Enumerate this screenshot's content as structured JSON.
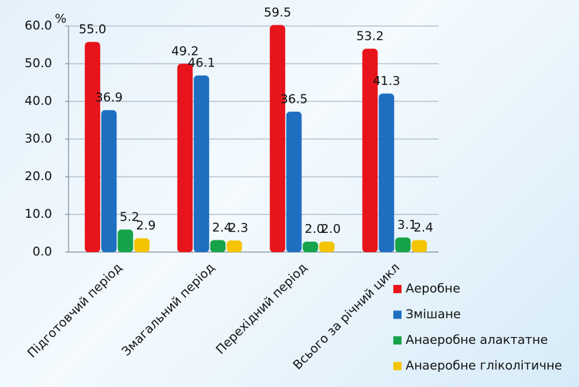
{
  "chart_data": {
    "type": "bar",
    "y_label": "%",
    "categories": [
      "Підготовчий період",
      "Змагальний період",
      "Перехідний період",
      "Всього за річний цикл"
    ],
    "series": [
      {
        "name": "Аеробне",
        "color": "#e8141b",
        "values": [
          55.0,
          49.2,
          59.5,
          53.2
        ],
        "value_labels": [
          "55.0",
          "49.2",
          "59.5",
          "53.2"
        ]
      },
      {
        "name": "Змішане",
        "color": "#1f6fc1",
        "values": [
          36.9,
          46.1,
          36.5,
          41.3
        ],
        "value_labels": [
          "36.9",
          "46.1",
          "36.5",
          "41.3"
        ]
      },
      {
        "name": "Анаеробне алактатне",
        "color": "#16a34a",
        "values": [
          5.2,
          2.4,
          2.0,
          3.1
        ],
        "value_labels": [
          "5.2",
          "2.4",
          "2.0",
          "3.1"
        ]
      },
      {
        "name": "Анаеробне гліколітичне",
        "color": "#f5c400",
        "values": [
          2.9,
          2.3,
          2.0,
          2.4
        ],
        "value_labels": [
          "2.9",
          "2.3",
          "2.0",
          "2.4"
        ]
      }
    ],
    "ylim": [
      0,
      60
    ],
    "yticks": [
      {
        "value": 0,
        "label": "0.0"
      },
      {
        "value": 10,
        "label": "10.0"
      },
      {
        "value": 20,
        "label": "20.0"
      },
      {
        "value": 30,
        "label": "30.0"
      },
      {
        "value": 40,
        "label": "40.0"
      },
      {
        "value": 50,
        "label": "50.0"
      },
      {
        "value": 60,
        "label": "60.0"
      }
    ],
    "grid": true
  }
}
